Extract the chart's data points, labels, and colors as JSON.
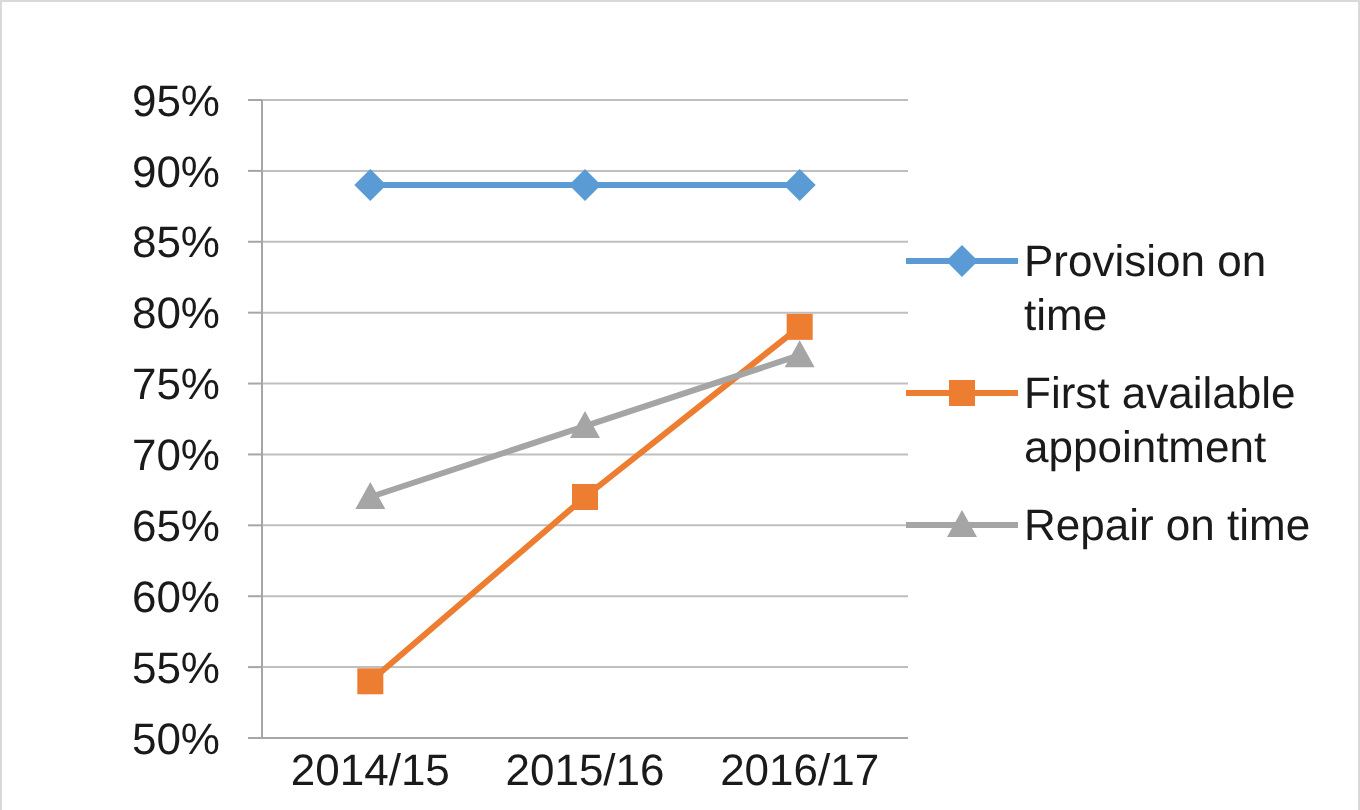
{
  "chart_data": {
    "type": "line",
    "categories": [
      "2014/15",
      "2015/16",
      "2016/17"
    ],
    "series": [
      {
        "name": "Provision on time",
        "color": "#5b9bd5",
        "marker": "diamond",
        "values": [
          89,
          89,
          89
        ]
      },
      {
        "name": "First available appointment",
        "color": "#ed7d31",
        "marker": "square",
        "values": [
          54,
          67,
          79
        ]
      },
      {
        "name": "Repair on time",
        "color": "#a5a5a5",
        "marker": "triangle",
        "values": [
          67,
          72,
          77
        ]
      }
    ],
    "ylim": [
      50,
      95
    ],
    "yticks": [
      {
        "value": 50,
        "label": "50%"
      },
      {
        "value": 55,
        "label": "55%"
      },
      {
        "value": 60,
        "label": "60%"
      },
      {
        "value": 65,
        "label": "65%"
      },
      {
        "value": 70,
        "label": "70%"
      },
      {
        "value": 75,
        "label": "75%"
      },
      {
        "value": 80,
        "label": "80%"
      },
      {
        "value": 85,
        "label": "85%"
      },
      {
        "value": 90,
        "label": "90%"
      },
      {
        "value": 95,
        "label": "95%"
      }
    ],
    "grid": "y",
    "legend": "right"
  }
}
